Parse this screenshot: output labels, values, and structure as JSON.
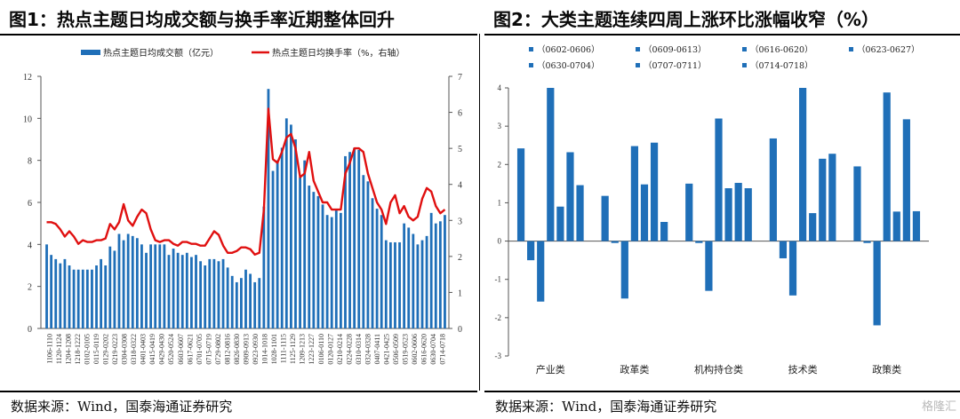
{
  "watermark": "格隆汇",
  "panels": [
    {
      "title": "图1：热点主题日均成交额与换手率近期整体回升",
      "source": "数据来源：Wind，国泰海通证券研究"
    },
    {
      "title": "图2：大类主题连续四周上涨环比涨幅收窄（%）",
      "source": "数据来源：Wind，国泰海通证券研究"
    }
  ],
  "colors": {
    "bar": "#1f6fb8",
    "line": "#e01010",
    "axis": "#555555",
    "text": "#333333"
  },
  "chart_data": [
    {
      "type": "bar+line",
      "legend": [
        "热点主题日均成交额（亿元）",
        "热点主题日均换手率（%，右轴）"
      ],
      "legend_placement": "top",
      "ylim": [
        0,
        12
      ],
      "y_ticks": [
        "0",
        "2",
        "4",
        "6",
        "8",
        "10",
        "12"
      ],
      "y2lim": [
        0,
        7
      ],
      "y2_ticks": [
        "0",
        "1",
        "2",
        "3",
        "4",
        "5",
        "6",
        "7"
      ],
      "x_tick_labels": [
        "1106-1110",
        "1120-1124",
        "1204-1208",
        "1218-1222",
        "0102-0105",
        "0115-0119",
        "0129-0202",
        "0219-0223",
        "0304-0308",
        "0318-0322",
        "0401-0403",
        "0415-0419",
        "0429-0430",
        "0520-0524",
        "0603-0607",
        "0617-0621",
        "0701-0705",
        "0715-0719",
        "0729-0802",
        "0812-0816",
        "0826-0830",
        "0909-0913",
        "0923-0930",
        "1014-1018",
        "1028-1101",
        "1111-1115",
        "1125-1129",
        "1209-1213",
        "1223-1227",
        "0106-0110",
        "0120-0127",
        "0210-0214",
        "0224-0228",
        "0310-0314",
        "0324-0328",
        "0407-0411",
        "0421-0425",
        "0506-0509",
        "0519-0523",
        "0602-0606",
        "0616-0620",
        "0630-0704",
        "0714-0718"
      ],
      "bar_values": [
        4.0,
        3.5,
        3.3,
        3.1,
        3.3,
        3.0,
        2.8,
        2.8,
        2.8,
        2.8,
        2.8,
        3.0,
        3.3,
        3.0,
        3.9,
        3.7,
        4.5,
        4.2,
        4.5,
        4.4,
        4.3,
        4.0,
        3.6,
        4.0,
        4.0,
        4.0,
        4.0,
        3.5,
        3.8,
        3.6,
        3.5,
        3.6,
        3.4,
        3.5,
        3.2,
        3.0,
        3.3,
        3.3,
        3.2,
        3.3,
        2.9,
        2.5,
        2.2,
        2.4,
        2.8,
        2.6,
        2.2,
        2.4,
        5.8,
        11.4,
        7.5,
        8.0,
        8.6,
        10.0,
        9.7,
        9.0,
        7.2,
        8.0,
        6.8,
        6.5,
        6.3,
        5.9,
        5.4,
        5.3,
        5.7,
        5.5,
        8.2,
        8.4,
        8.6,
        8.5,
        7.3,
        7.0,
        6.2,
        5.7,
        5.4,
        4.2,
        4.1,
        4.1,
        4.1,
        5.0,
        4.8,
        4.5,
        4.0,
        4.2,
        4.4,
        5.5,
        5.0,
        5.1,
        5.4
      ],
      "line_values": [
        2.95,
        2.95,
        2.9,
        2.75,
        2.55,
        2.7,
        2.55,
        2.35,
        2.45,
        2.4,
        2.4,
        2.45,
        2.45,
        2.5,
        2.9,
        2.75,
        2.95,
        3.45,
        3.0,
        2.85,
        3.1,
        3.3,
        3.2,
        2.75,
        2.45,
        2.4,
        2.45,
        2.45,
        2.35,
        2.3,
        2.4,
        2.4,
        2.35,
        2.35,
        2.3,
        2.3,
        2.5,
        2.7,
        2.6,
        2.3,
        2.1,
        2.1,
        2.15,
        2.25,
        2.25,
        2.2,
        2.05,
        2.1,
        3.3,
        6.1,
        4.7,
        4.6,
        4.9,
        5.3,
        5.4,
        5.0,
        4.2,
        4.3,
        4.9,
        4.1,
        3.8,
        3.5,
        3.5,
        3.3,
        3.3,
        3.3,
        4.3,
        4.6,
        5.0,
        5.0,
        4.9,
        4.3,
        3.9,
        3.5,
        3.3,
        2.9,
        3.5,
        3.7,
        3.2,
        3.4,
        3.1,
        3.0,
        3.1,
        3.6,
        3.9,
        3.8,
        3.4,
        3.2,
        3.3
      ]
    },
    {
      "type": "bar",
      "series": [
        {
          "name": "（0602-0606）",
          "values": [
            2.42,
            1.18,
            1.5,
            2.68,
            1.95
          ]
        },
        {
          "name": "（0609-0613）",
          "values": [
            -0.5,
            -0.05,
            -0.05,
            -0.45,
            -0.05
          ]
        },
        {
          "name": "（0616-0620）",
          "values": [
            -1.58,
            -1.5,
            -1.3,
            -1.42,
            -2.2
          ]
        },
        {
          "name": "（0623-0627）",
          "values": [
            4.0,
            2.48,
            3.2,
            4.0,
            3.88
          ]
        },
        {
          "name": "（0630-0704）",
          "values": [
            0.9,
            1.48,
            1.38,
            0.73,
            0.77
          ]
        },
        {
          "name": "（0707-0711）",
          "values": [
            2.32,
            2.57,
            1.52,
            2.15,
            3.18
          ]
        },
        {
          "name": "（0714-0718）",
          "values": [
            1.46,
            0.5,
            1.38,
            2.28,
            0.78
          ]
        }
      ],
      "categories": [
        "产业类",
        "政革类",
        "机构持仓类",
        "技术类",
        "政策类"
      ],
      "ylim": [
        -3,
        4
      ],
      "y_ticks": [
        "-3",
        "-2",
        "-1",
        "0",
        "1",
        "2",
        "3",
        "4"
      ],
      "legend_placement": "top"
    }
  ]
}
